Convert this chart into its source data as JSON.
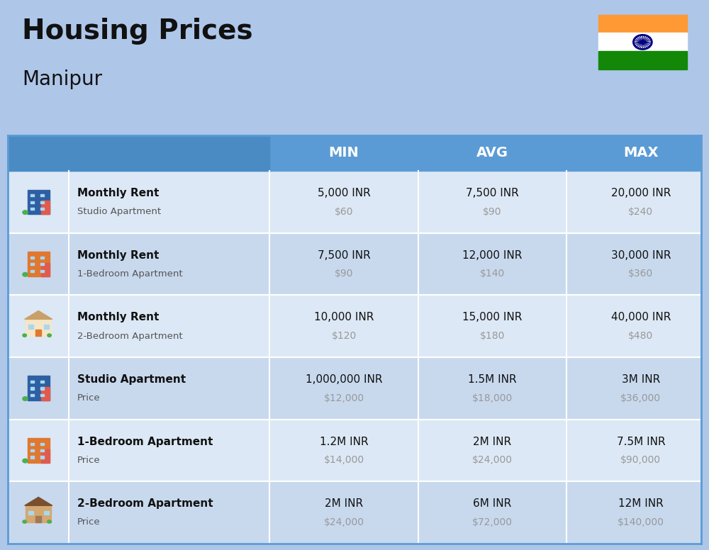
{
  "title": "Housing Prices",
  "subtitle": "Manipur",
  "background_color": "#aec6e8",
  "header_bg_color": "#5b9bd5",
  "header_col_bg": "#4a8bc4",
  "header_text_color": "#ffffff",
  "row_bg_colors": [
    "#dce8f5",
    "#c8d9ee"
  ],
  "col_headers": [
    "MIN",
    "AVG",
    "MAX"
  ],
  "rows": [
    {
      "bold_label": "Monthly Rent",
      "sub_label": "Studio Apartment",
      "icon_type": "studio_blue",
      "min_inr": "5,000 INR",
      "min_usd": "$60",
      "avg_inr": "7,500 INR",
      "avg_usd": "$90",
      "max_inr": "20,000 INR",
      "max_usd": "$240"
    },
    {
      "bold_label": "Monthly Rent",
      "sub_label": "1-Bedroom Apartment",
      "icon_type": "apartment_orange",
      "min_inr": "7,500 INR",
      "min_usd": "$90",
      "avg_inr": "12,000 INR",
      "avg_usd": "$140",
      "max_inr": "30,000 INR",
      "max_usd": "$360"
    },
    {
      "bold_label": "Monthly Rent",
      "sub_label": "2-Bedroom Apartment",
      "icon_type": "house_beige",
      "min_inr": "10,000 INR",
      "min_usd": "$120",
      "avg_inr": "15,000 INR",
      "avg_usd": "$180",
      "max_inr": "40,000 INR",
      "max_usd": "$480"
    },
    {
      "bold_label": "Studio Apartment",
      "sub_label": "Price",
      "icon_type": "studio_blue",
      "min_inr": "1,000,000 INR",
      "min_usd": "$12,000",
      "avg_inr": "1.5M INR",
      "avg_usd": "$18,000",
      "max_inr": "3M INR",
      "max_usd": "$36,000"
    },
    {
      "bold_label": "1-Bedroom Apartment",
      "sub_label": "Price",
      "icon_type": "apartment_orange",
      "min_inr": "1.2M INR",
      "min_usd": "$14,000",
      "avg_inr": "2M INR",
      "avg_usd": "$24,000",
      "max_inr": "7.5M INR",
      "max_usd": "$90,000"
    },
    {
      "bold_label": "2-Bedroom Apartment",
      "sub_label": "Price",
      "icon_type": "house_brown",
      "min_inr": "2M INR",
      "min_usd": "$24,000",
      "avg_inr": "6M INR",
      "avg_usd": "$72,000",
      "max_inr": "12M INR",
      "max_usd": "$140,000"
    }
  ]
}
